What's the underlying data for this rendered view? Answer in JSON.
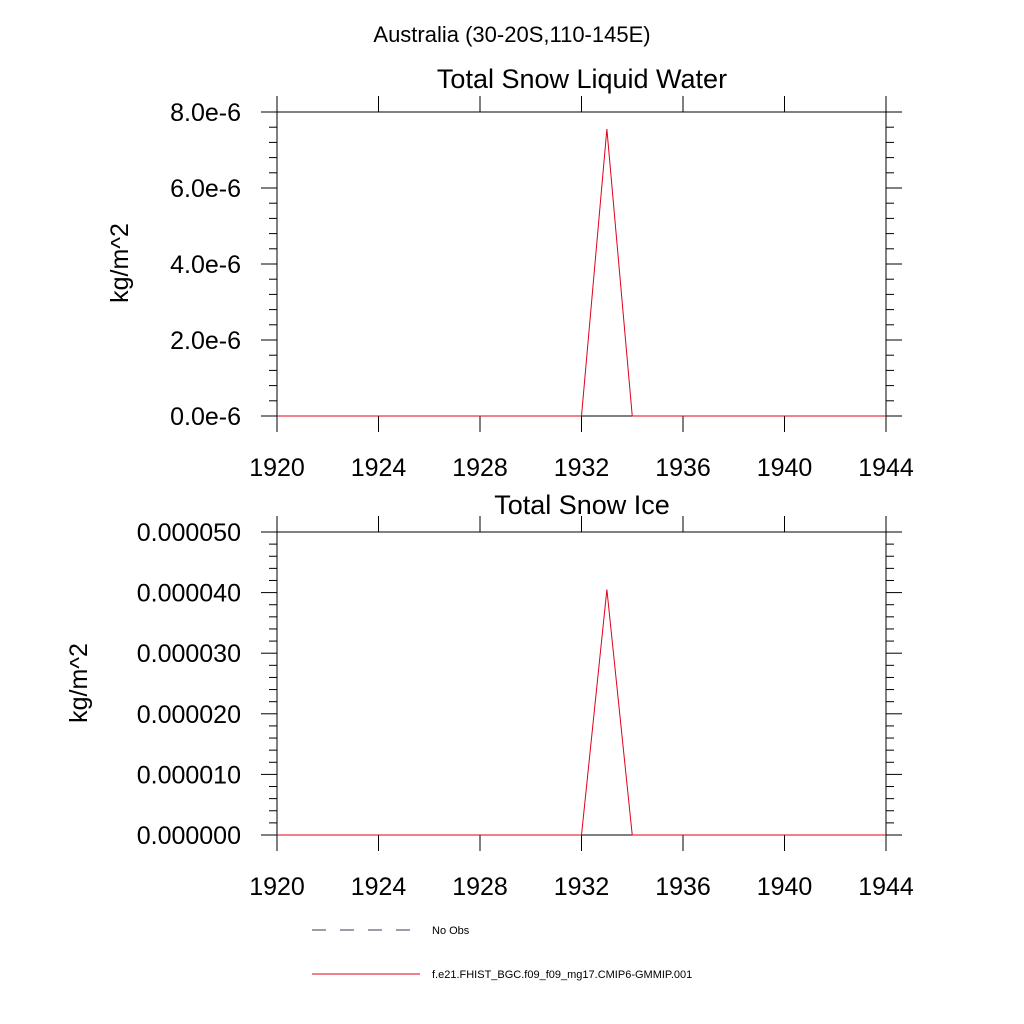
{
  "figure": {
    "suptitle": "Australia (30-20S,110-145E)"
  },
  "chart_data": [
    {
      "type": "line",
      "title": "Total Snow Liquid Water",
      "xlabel": "",
      "ylabel": "kg/m^2",
      "xlim": [
        1920,
        1944
      ],
      "ylim": [
        0,
        8e-06
      ],
      "x_ticks": [
        1920,
        1924,
        1928,
        1932,
        1936,
        1940,
        1944
      ],
      "y_ticks": [
        0,
        2e-06,
        4e-06,
        6e-06,
        8e-06
      ],
      "y_tick_labels": [
        "0.0e-6",
        "2.0e-6",
        "4.0e-6",
        "6.0e-6",
        "8.0e-6"
      ],
      "grid": false,
      "series": [
        {
          "name": "f.e21.FHIST_BGC.f09_f09_mg17.CMIP6-GMMIP.001",
          "color": "#e0001b",
          "x": [
            1920,
            1921,
            1922,
            1923,
            1924,
            1925,
            1926,
            1927,
            1928,
            1929,
            1930,
            1931,
            1932,
            1933,
            1934,
            1935,
            1936,
            1937,
            1938,
            1939,
            1940,
            1941,
            1942,
            1943,
            1944
          ],
          "y": [
            0,
            0,
            0,
            0,
            0,
            0,
            0,
            0,
            0,
            0,
            0,
            0,
            0,
            7.55e-06,
            0,
            0,
            0,
            0,
            0,
            0,
            0,
            0,
            0,
            0,
            0
          ]
        }
      ]
    },
    {
      "type": "line",
      "title": "Total Snow Ice",
      "xlabel": "",
      "ylabel": "kg/m^2",
      "xlim": [
        1920,
        1944
      ],
      "ylim": [
        0,
        5e-05
      ],
      "x_ticks": [
        1920,
        1924,
        1928,
        1932,
        1936,
        1940,
        1944
      ],
      "y_ticks": [
        0,
        1e-05,
        2e-05,
        3e-05,
        4e-05,
        5e-05
      ],
      "y_tick_labels": [
        "0.000000",
        "0.000010",
        "0.000020",
        "0.000030",
        "0.000040",
        "0.000050"
      ],
      "grid": false,
      "series": [
        {
          "name": "f.e21.FHIST_BGC.f09_f09_mg17.CMIP6-GMMIP.001",
          "color": "#e0001b",
          "x": [
            1920,
            1921,
            1922,
            1923,
            1924,
            1925,
            1926,
            1927,
            1928,
            1929,
            1930,
            1931,
            1932,
            1933,
            1934,
            1935,
            1936,
            1937,
            1938,
            1939,
            1940,
            1941,
            1942,
            1943,
            1944
          ],
          "y": [
            0,
            0,
            0,
            0,
            0,
            0,
            0,
            0,
            0,
            0,
            0,
            0,
            0,
            4.05e-05,
            0,
            0,
            0,
            0,
            0,
            0,
            0,
            0,
            0,
            0,
            0
          ]
        }
      ]
    }
  ],
  "legend": {
    "placement": "bottom",
    "entries": [
      {
        "label": "No Obs",
        "color": "#3a3a55",
        "style": "dashed"
      },
      {
        "label": "f.e21.FHIST_BGC.f09_f09_mg17.CMIP6-GMMIP.001",
        "color": "#e0001b",
        "style": "solid"
      }
    ]
  }
}
